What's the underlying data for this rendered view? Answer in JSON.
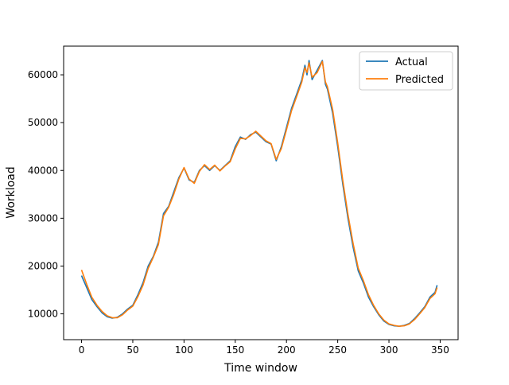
{
  "chart_data": {
    "type": "line",
    "title": "",
    "xlabel": "Time window",
    "ylabel": "Workload",
    "xlim": [
      -17.5,
      367.5
    ],
    "ylim": [
      4600,
      66000
    ],
    "xticks": [
      0,
      50,
      100,
      150,
      200,
      250,
      300,
      350
    ],
    "yticks": [
      10000,
      20000,
      30000,
      40000,
      50000,
      60000
    ],
    "grid": false,
    "legend_position": "top-right",
    "series": [
      {
        "name": "Actual",
        "color": "#1f77b4",
        "x": [
          0,
          5,
          10,
          15,
          20,
          25,
          30,
          35,
          40,
          45,
          50,
          55,
          60,
          65,
          70,
          75,
          80,
          85,
          90,
          95,
          100,
          105,
          110,
          115,
          120,
          125,
          130,
          135,
          140,
          145,
          150,
          155,
          160,
          165,
          170,
          175,
          180,
          185,
          190,
          195,
          200,
          205,
          210,
          215,
          218,
          220,
          222,
          225,
          230,
          235,
          238,
          240,
          245,
          250,
          255,
          260,
          265,
          270,
          275,
          280,
          285,
          290,
          295,
          300,
          305,
          310,
          315,
          320,
          325,
          330,
          335,
          340,
          345,
          347
        ],
        "values": [
          18000,
          15500,
          13000,
          11500,
          10200,
          9400,
          9100,
          9300,
          10000,
          11000,
          11800,
          14000,
          16500,
          20000,
          22000,
          25000,
          31000,
          32500,
          35500,
          38500,
          40500,
          38000,
          37500,
          40000,
          41000,
          40000,
          41000,
          40000,
          41000,
          42000,
          45000,
          47000,
          46500,
          47500,
          48000,
          47000,
          46000,
          45500,
          42000,
          45000,
          49000,
          53000,
          56000,
          59000,
          62000,
          60000,
          63000,
          59000,
          61000,
          63000,
          58000,
          57000,
          52000,
          45000,
          37000,
          30000,
          24000,
          19000,
          16500,
          13500,
          11500,
          9800,
          8500,
          7800,
          7500,
          7400,
          7600,
          8000,
          9000,
          10200,
          11500,
          13500,
          14500,
          16000
        ]
      },
      {
        "name": "Predicted",
        "color": "#ff7f0e",
        "x": [
          0,
          5,
          10,
          15,
          20,
          25,
          30,
          35,
          40,
          45,
          50,
          55,
          60,
          65,
          70,
          75,
          80,
          85,
          90,
          95,
          100,
          105,
          110,
          115,
          120,
          125,
          130,
          135,
          140,
          145,
          150,
          155,
          160,
          165,
          170,
          175,
          180,
          185,
          190,
          195,
          200,
          205,
          210,
          215,
          218,
          220,
          222,
          225,
          230,
          235,
          238,
          240,
          245,
          250,
          255,
          260,
          265,
          270,
          275,
          280,
          285,
          290,
          295,
          300,
          305,
          310,
          315,
          320,
          325,
          330,
          335,
          340,
          345,
          347
        ],
        "values": [
          19200,
          16200,
          13500,
          11800,
          10500,
          9600,
          9200,
          9200,
          9800,
          10800,
          11600,
          13600,
          16000,
          19500,
          21800,
          24500,
          30500,
          32300,
          35000,
          38200,
          40600,
          38200,
          37300,
          39800,
          41200,
          40200,
          41100,
          39900,
          40900,
          41800,
          44500,
          46700,
          46600,
          47300,
          48200,
          47200,
          46200,
          45600,
          42300,
          44600,
          48500,
          52500,
          55500,
          58500,
          61500,
          60500,
          62500,
          59500,
          60500,
          62800,
          58500,
          57500,
          52800,
          45800,
          37800,
          30800,
          24800,
          19600,
          17000,
          14000,
          11800,
          10000,
          8700,
          7900,
          7600,
          7400,
          7500,
          7900,
          8800,
          10000,
          11300,
          13200,
          14200,
          15500
        ]
      }
    ]
  }
}
